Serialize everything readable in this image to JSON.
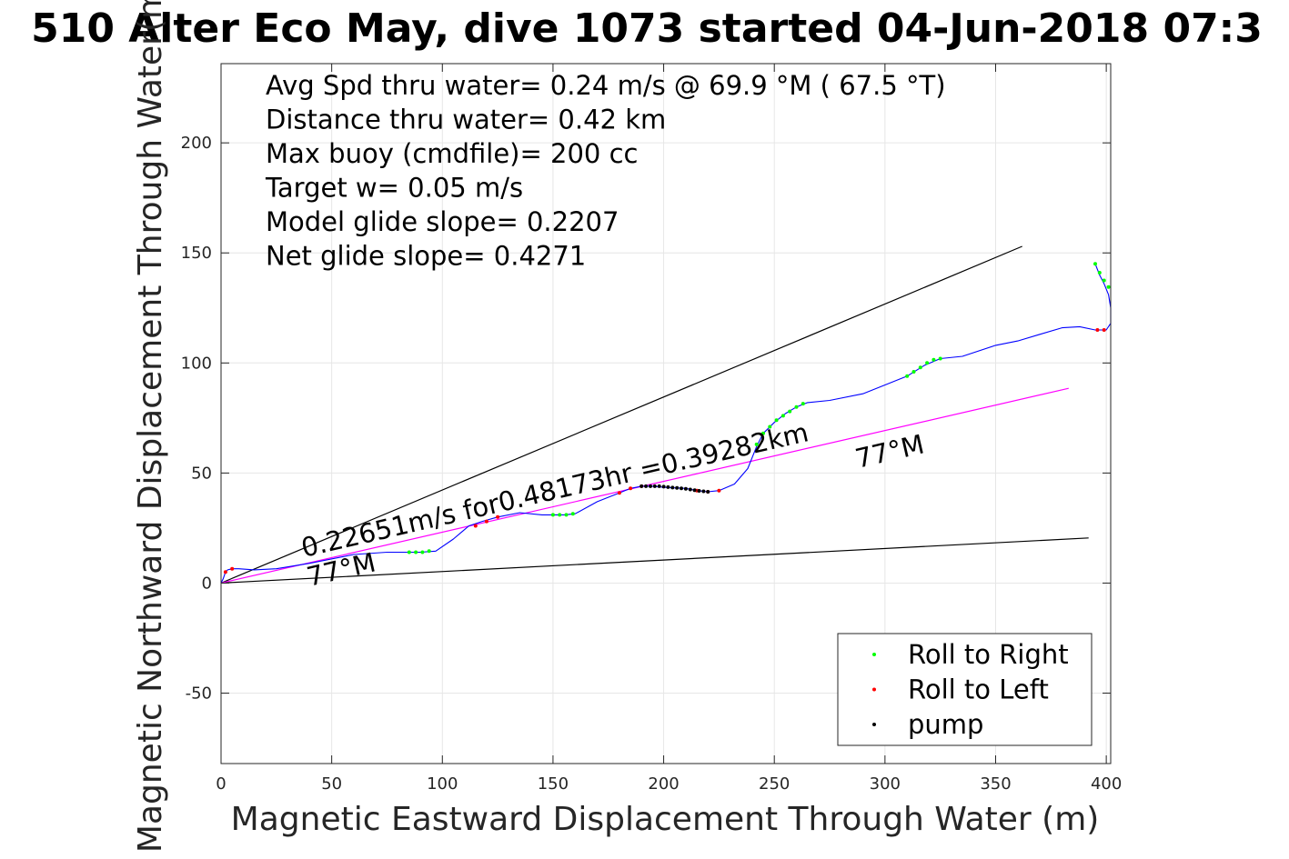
{
  "chart_data": {
    "type": "line",
    "title": "510 Alter Eco May, dive 1073 started 04-Jun-2018 07:3",
    "xlabel": "Magnetic Eastward Displacement Through Water (m)",
    "ylabel": "Magnetic Northward Displacement Through Water(m)",
    "xlim": [
      0,
      402
    ],
    "ylim": [
      -82,
      236
    ],
    "x_ticks": [
      0,
      50,
      100,
      150,
      200,
      250,
      300,
      350,
      400
    ],
    "y_ticks": [
      -50,
      0,
      50,
      100,
      150,
      200
    ],
    "x_tick_labels": [
      "0",
      "50",
      "100",
      "150",
      "200",
      "250",
      "300",
      "350",
      "400"
    ],
    "y_tick_labels": [
      "-50",
      "0",
      "50",
      "100",
      "150",
      "200"
    ],
    "grid": true,
    "stats": [
      "Avg Spd thru water=  0.24 m/s @  69.9 °M ( 67.5 °T)",
      "Distance thru water=  0.42 km",
      "Max buoy (cmdfile)= 200 cc",
      "Target w= 0.05 m/s",
      "Model glide slope= 0.2207",
      "Net glide slope= 0.4271"
    ],
    "annotations": {
      "main": "0.22651m/s for0.48173hr =0.39282km",
      "heading_start": "77°M",
      "heading_end": "77°M"
    },
    "reference_lines": [
      {
        "x": [
          0,
          362
        ],
        "y": [
          0,
          153
        ],
        "color": "#000000"
      },
      {
        "x": [
          0,
          392
        ],
        "y": [
          0,
          20.5
        ],
        "color": "#000000"
      },
      {
        "x": [
          0,
          383
        ],
        "y": [
          0,
          88.5
        ],
        "color": "#ff00ff"
      }
    ],
    "series": [
      {
        "name": "",
        "color": "#0000ff",
        "x": [
          0,
          1,
          2,
          3,
          5,
          8,
          15,
          25,
          40,
          60,
          75,
          85,
          90,
          97,
          105,
          112,
          118,
          125,
          135,
          145,
          150,
          155,
          160,
          170,
          180,
          185,
          190,
          195,
          200,
          210,
          215,
          220,
          225,
          232,
          238,
          242,
          245,
          250,
          255,
          260,
          265,
          275,
          290,
          300,
          310,
          318,
          325,
          335,
          350,
          360,
          370,
          380,
          388,
          395,
          398,
          400,
          402,
          402,
          401,
          399,
          397,
          395
        ],
        "y": [
          0,
          2,
          5,
          6,
          6.5,
          6.5,
          6,
          6.5,
          9,
          13,
          14,
          14,
          14,
          14.5,
          20,
          26,
          28,
          30,
          32,
          31,
          31,
          31,
          31.5,
          37,
          41,
          43,
          44,
          44,
          43.5,
          43,
          42,
          41.5,
          42,
          45,
          52,
          62,
          68,
          73,
          77,
          80,
          82,
          83,
          86,
          90,
          94,
          99,
          102,
          103,
          108,
          110,
          113,
          116,
          116.5,
          115,
          115,
          115,
          118,
          125,
          131,
          136,
          140,
          145
        ]
      }
    ],
    "markers": [
      {
        "name": "Roll to Right",
        "color": "#00ff00",
        "points": [
          [
            85,
            14
          ],
          [
            88,
            14
          ],
          [
            91,
            14
          ],
          [
            94,
            14.5
          ],
          [
            150,
            31
          ],
          [
            153,
            31
          ],
          [
            156,
            31
          ],
          [
            159,
            31.5
          ],
          [
            242,
            63
          ],
          [
            245,
            68
          ],
          [
            248,
            71
          ],
          [
            251,
            74
          ],
          [
            254,
            76
          ],
          [
            257,
            78
          ],
          [
            260,
            80
          ],
          [
            263,
            81.5
          ],
          [
            310,
            94
          ],
          [
            313,
            96
          ],
          [
            316,
            98
          ],
          [
            319,
            100
          ],
          [
            322,
            101.5
          ],
          [
            325,
            102
          ],
          [
            395,
            145
          ],
          [
            397,
            141
          ],
          [
            399,
            137.5
          ],
          [
            401,
            134.5
          ]
        ]
      },
      {
        "name": "Roll to Left",
        "color": "#ff0000",
        "points": [
          [
            2,
            5
          ],
          [
            5,
            6.5
          ],
          [
            115,
            26
          ],
          [
            120,
            28
          ],
          [
            125,
            30
          ],
          [
            180,
            41
          ],
          [
            185,
            43
          ],
          [
            190,
            44
          ],
          [
            215,
            42
          ],
          [
            220,
            41.5
          ],
          [
            225,
            42
          ],
          [
            396,
            115
          ],
          [
            399,
            115
          ]
        ]
      },
      {
        "name": "pump",
        "color": "#000000",
        "points": [
          [
            190,
            44
          ],
          [
            192,
            44
          ],
          [
            194,
            44
          ],
          [
            196,
            44
          ],
          [
            198,
            44
          ],
          [
            200,
            43.8
          ],
          [
            202,
            43.6
          ],
          [
            204,
            43.4
          ],
          [
            206,
            43.2
          ],
          [
            208,
            43
          ],
          [
            210,
            42.8
          ],
          [
            212,
            42.5
          ],
          [
            214,
            42.2
          ],
          [
            216,
            41.9
          ],
          [
            218,
            41.7
          ],
          [
            220,
            41.5
          ]
        ]
      }
    ],
    "legend": {
      "position": "bottom-right",
      "entries": [
        "Roll to Right",
        "Roll to Left",
        "pump"
      ]
    }
  }
}
